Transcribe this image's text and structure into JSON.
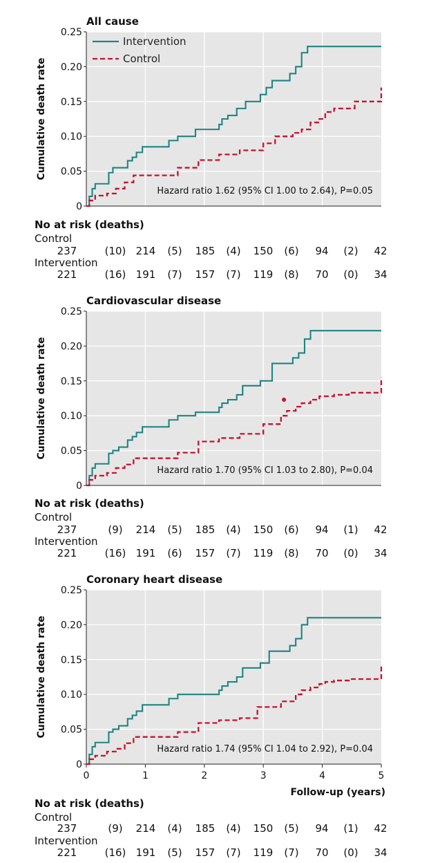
{
  "colors": {
    "intervention": "#1f8481",
    "control": "#c8102e",
    "plot_background": "#e6e6e6",
    "grid": "#ffffff"
  },
  "legend": {
    "intervention": "Intervention",
    "control": "Control"
  },
  "shared": {
    "ylabel": "Cumulative death rate",
    "xlabel": "Follow-up (years)",
    "risk_title": "No at risk (deaths)",
    "control_label": "Control",
    "intervention_label": "Intervention",
    "x_ticks": [
      "0",
      "1",
      "2",
      "3",
      "4",
      "5"
    ]
  },
  "chart_data": [
    {
      "type": "line",
      "title": "All cause",
      "ylabel": "Cumulative death rate",
      "xlim": [
        0,
        5
      ],
      "ylim": [
        0,
        0.25
      ],
      "y_ticks": [
        "0",
        "0.05",
        "0.10",
        "0.15",
        "0.20",
        "0.25"
      ],
      "grid": true,
      "legend_position": "top-left",
      "annotation": "Hazard ratio 1.62 (95% CI 1.00 to 2.64), P=0.05",
      "series": [
        {
          "name": "Intervention",
          "style": "step-solid",
          "x": [
            0,
            0.05,
            0.1,
            0.15,
            0.25,
            0.38,
            0.45,
            0.55,
            0.7,
            0.78,
            0.85,
            0.95,
            1.4,
            1.55,
            1.85,
            2.25,
            2.3,
            2.4,
            2.55,
            2.7,
            2.95,
            3.05,
            3.15,
            3.45,
            3.55,
            3.65,
            3.75,
            5.0
          ],
          "y": [
            0,
            0.014,
            0.025,
            0.032,
            0.032,
            0.048,
            0.055,
            0.055,
            0.065,
            0.07,
            0.077,
            0.085,
            0.094,
            0.1,
            0.11,
            0.117,
            0.125,
            0.13,
            0.14,
            0.15,
            0.16,
            0.17,
            0.18,
            0.19,
            0.2,
            0.22,
            0.229,
            0.229
          ]
        },
        {
          "name": "Control",
          "style": "step-dashed",
          "x": [
            0,
            0.05,
            0.15,
            0.35,
            0.5,
            0.65,
            0.8,
            1.55,
            1.9,
            2.25,
            2.6,
            3.0,
            3.2,
            3.5,
            3.65,
            3.8,
            3.95,
            4.05,
            4.2,
            4.4,
            4.55,
            5.0
          ],
          "y": [
            0,
            0.008,
            0.015,
            0.018,
            0.025,
            0.034,
            0.044,
            0.055,
            0.066,
            0.074,
            0.08,
            0.09,
            0.1,
            0.105,
            0.11,
            0.12,
            0.125,
            0.135,
            0.14,
            0.14,
            0.15,
            0.17
          ]
        }
      ],
      "at_risk": {
        "control": [
          "237",
          "(10)",
          "214",
          "(5)",
          "185",
          "(4)",
          "150",
          "(6)",
          "94",
          "(2)",
          "42"
        ],
        "intervention": [
          "221",
          "(16)",
          "191",
          "(7)",
          "157",
          "(7)",
          "119",
          "(8)",
          "70",
          "(0)",
          "34"
        ]
      }
    },
    {
      "type": "line",
      "title": "Cardiovascular disease",
      "ylabel": "Cumulative death rate",
      "xlim": [
        0,
        5
      ],
      "ylim": [
        0,
        0.25
      ],
      "y_ticks": [
        "0",
        "0.05",
        "0.10",
        "0.15",
        "0.20",
        "0.25"
      ],
      "grid": true,
      "annotation": "Hazard ratio 1.70 (95% CI 1.03 to 2.80), P=0.04",
      "series": [
        {
          "name": "Intervention",
          "style": "step-solid",
          "x": [
            0,
            0.05,
            0.1,
            0.15,
            0.25,
            0.38,
            0.45,
            0.55,
            0.7,
            0.78,
            0.85,
            0.95,
            1.4,
            1.55,
            1.85,
            2.25,
            2.3,
            2.4,
            2.55,
            2.65,
            2.95,
            3.15,
            3.5,
            3.6,
            3.7,
            3.8,
            5.0
          ],
          "y": [
            0,
            0.014,
            0.025,
            0.031,
            0.031,
            0.046,
            0.05,
            0.055,
            0.065,
            0.07,
            0.076,
            0.084,
            0.094,
            0.1,
            0.105,
            0.112,
            0.118,
            0.123,
            0.13,
            0.143,
            0.15,
            0.175,
            0.183,
            0.19,
            0.21,
            0.222,
            0.222
          ]
        },
        {
          "name": "Control",
          "style": "step-dashed",
          "x": [
            0,
            0.05,
            0.15,
            0.35,
            0.5,
            0.65,
            0.8,
            1.55,
            1.9,
            2.25,
            2.6,
            3.0,
            3.3,
            3.4,
            3.55,
            3.65,
            3.8,
            3.95,
            4.05,
            4.2,
            4.45,
            5.0
          ],
          "y": [
            0,
            0.008,
            0.014,
            0.018,
            0.025,
            0.03,
            0.039,
            0.047,
            0.063,
            0.068,
            0.074,
            0.088,
            0.1,
            0.107,
            0.113,
            0.118,
            0.123,
            0.128,
            0.128,
            0.13,
            0.133,
            0.155
          ]
        }
      ],
      "marker": {
        "x": 3.35,
        "y": 0.123
      },
      "at_risk": {
        "control": [
          "237",
          "(9)",
          "214",
          "(5)",
          "185",
          "(4)",
          "150",
          "(6)",
          "94",
          "(1)",
          "42"
        ],
        "intervention": [
          "221",
          "(16)",
          "191",
          "(6)",
          "157",
          "(7)",
          "119",
          "(8)",
          "70",
          "(0)",
          "34"
        ]
      }
    },
    {
      "type": "line",
      "title": "Coronary heart disease",
      "ylabel": "Cumulative death rate",
      "xlabel": "Follow-up (years)",
      "xlim": [
        0,
        5
      ],
      "ylim": [
        0,
        0.25
      ],
      "y_ticks": [
        "0",
        "0.05",
        "0.10",
        "0.15",
        "0.20",
        "0.25"
      ],
      "x_ticks": [
        "0",
        "1",
        "2",
        "3",
        "4",
        "5"
      ],
      "grid": true,
      "annotation": "Hazard ratio 1.74 (95% CI 1.04 to 2.92), P=0.04",
      "series": [
        {
          "name": "Intervention",
          "style": "step-solid",
          "x": [
            0,
            0.05,
            0.1,
            0.15,
            0.25,
            0.38,
            0.45,
            0.55,
            0.7,
            0.78,
            0.85,
            0.95,
            1.4,
            1.55,
            2.25,
            2.3,
            2.4,
            2.55,
            2.65,
            2.95,
            3.1,
            3.45,
            3.55,
            3.65,
            3.75,
            5.0
          ],
          "y": [
            0,
            0.014,
            0.025,
            0.031,
            0.031,
            0.046,
            0.05,
            0.055,
            0.065,
            0.07,
            0.076,
            0.085,
            0.094,
            0.1,
            0.106,
            0.112,
            0.118,
            0.125,
            0.138,
            0.145,
            0.162,
            0.17,
            0.18,
            0.2,
            0.21,
            0.21
          ]
        },
        {
          "name": "Control",
          "style": "step-dashed",
          "x": [
            0,
            0.05,
            0.15,
            0.35,
            0.5,
            0.65,
            0.8,
            1.55,
            1.9,
            2.25,
            2.6,
            2.9,
            3.3,
            3.55,
            3.65,
            3.8,
            3.95,
            4.05,
            4.2,
            4.45,
            5.0
          ],
          "y": [
            0,
            0.007,
            0.012,
            0.018,
            0.022,
            0.03,
            0.039,
            0.046,
            0.059,
            0.063,
            0.066,
            0.082,
            0.09,
            0.1,
            0.106,
            0.11,
            0.115,
            0.118,
            0.12,
            0.122,
            0.143
          ]
        }
      ],
      "at_risk": {
        "control": [
          "237",
          "(9)",
          "214",
          "(4)",
          "185",
          "(4)",
          "150",
          "(5)",
          "94",
          "(1)",
          "42"
        ],
        "intervention": [
          "221",
          "(16)",
          "191",
          "(5)",
          "157",
          "(7)",
          "119",
          "(7)",
          "70",
          "(0)",
          "34"
        ]
      }
    }
  ]
}
